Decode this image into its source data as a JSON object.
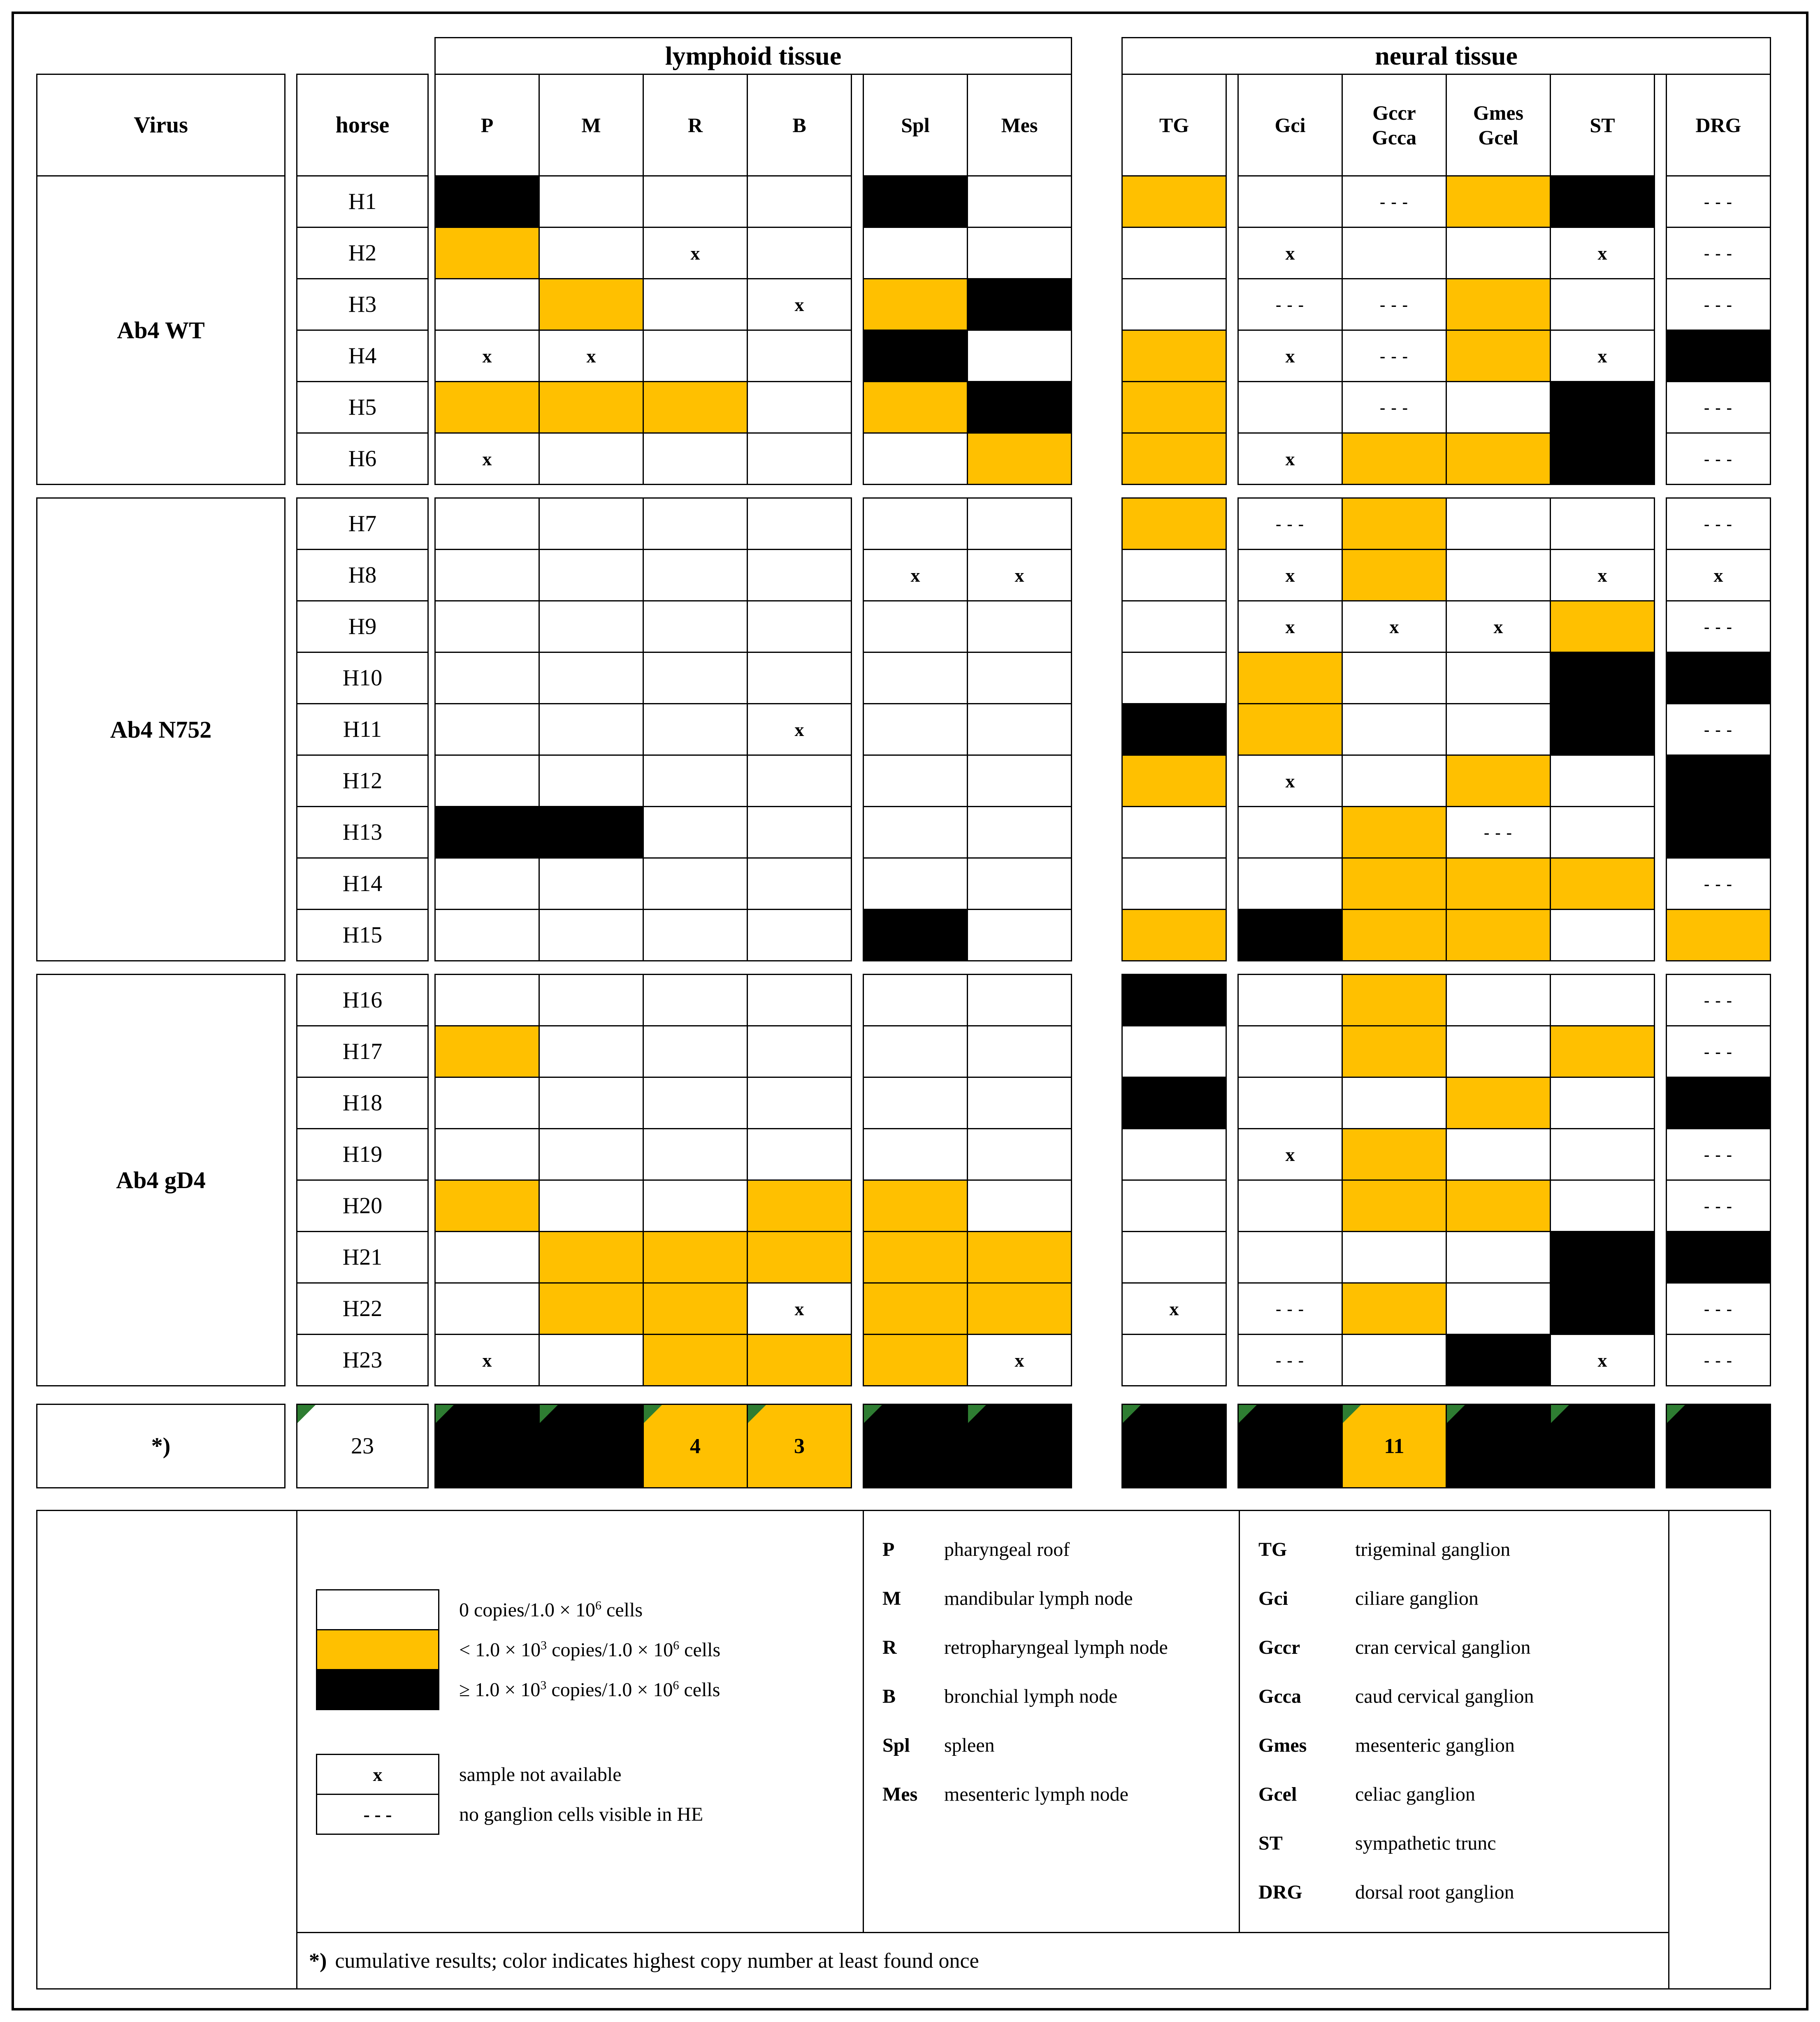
{
  "colors": {
    "low_copy_orange": "#FFC000",
    "high_copy_black": "#000000",
    "flag_green": "#2E7D32"
  },
  "symbols": {
    "x": "x",
    "dash": "- - -"
  },
  "header": {
    "tissue_groups": [
      {
        "label": "lymphoid tissue"
      },
      {
        "label": "neural tissue"
      }
    ],
    "virus": "Virus",
    "horse": "horse",
    "lymphoid_columns": [
      [
        "P"
      ],
      [
        "M"
      ],
      [
        "R"
      ],
      [
        "B"
      ],
      [
        "Spl"
      ],
      [
        "Mes"
      ]
    ],
    "neural_columns": [
      [
        "TG"
      ],
      [
        "Gci"
      ],
      [
        "Gccr",
        "Gcca"
      ],
      [
        "Gmes",
        "Gcel"
      ],
      [
        "ST"
      ],
      [
        "DRG"
      ]
    ]
  },
  "groups": [
    {
      "virus": "Ab4 WT",
      "rows": [
        {
          "horse": "H1",
          "cells": [
            "black",
            "white",
            "white",
            "white",
            "black",
            "white",
            "orange",
            "white",
            "dash",
            "orange",
            "black",
            "dash"
          ]
        },
        {
          "horse": "H2",
          "cells": [
            "orange",
            "white",
            "x",
            "white",
            "white",
            "white",
            "white",
            "x",
            "white",
            "white",
            "x",
            "dash"
          ]
        },
        {
          "horse": "H3",
          "cells": [
            "white",
            "orange",
            "white",
            "x",
            "orange",
            "black",
            "white",
            "dash",
            "dash",
            "orange",
            "white",
            "dash"
          ]
        },
        {
          "horse": "H4",
          "cells": [
            "x",
            "x",
            "white",
            "white",
            "black",
            "white",
            "orange",
            "x",
            "dash",
            "orange",
            "x",
            "black"
          ]
        },
        {
          "horse": "H5",
          "cells": [
            "orange",
            "orange",
            "orange",
            "white",
            "orange",
            "black",
            "orange",
            "white",
            "dash",
            "white",
            "black",
            "dash"
          ]
        },
        {
          "horse": "H6",
          "cells": [
            "x",
            "white",
            "white",
            "white",
            "white",
            "orange",
            "orange",
            "x",
            "orange",
            "orange",
            "black",
            "dash"
          ]
        }
      ]
    },
    {
      "virus": "Ab4 N752",
      "rows": [
        {
          "horse": "H7",
          "cells": [
            "white",
            "white",
            "white",
            "white",
            "white",
            "white",
            "orange",
            "dash",
            "orange",
            "white",
            "white",
            "dash"
          ]
        },
        {
          "horse": "H8",
          "cells": [
            "white",
            "white",
            "white",
            "white",
            "x",
            "x",
            "white",
            "x",
            "orange",
            "white",
            "x",
            "x"
          ]
        },
        {
          "horse": "H9",
          "cells": [
            "white",
            "white",
            "white",
            "white",
            "white",
            "white",
            "white",
            "x",
            "x",
            "x",
            "orange",
            "dash"
          ]
        },
        {
          "horse": "H10",
          "cells": [
            "white",
            "white",
            "white",
            "white",
            "white",
            "white",
            "white",
            "orange",
            "white",
            "white",
            "black",
            "black"
          ]
        },
        {
          "horse": "H11",
          "cells": [
            "white",
            "white",
            "white",
            "x",
            "white",
            "white",
            "black",
            "orange",
            "white",
            "white",
            "black",
            "dash"
          ]
        },
        {
          "horse": "H12",
          "cells": [
            "white",
            "white",
            "white",
            "white",
            "white",
            "white",
            "orange",
            "x",
            "white",
            "orange",
            "white",
            "black"
          ]
        },
        {
          "horse": "H13",
          "cells": [
            "black",
            "black",
            "white",
            "white",
            "white",
            "white",
            "white",
            "white",
            "orange",
            "dash",
            "white",
            "black"
          ]
        },
        {
          "horse": "H14",
          "cells": [
            "white",
            "white",
            "white",
            "white",
            "white",
            "white",
            "white",
            "white",
            "orange",
            "orange",
            "orange",
            "dash"
          ]
        },
        {
          "horse": "H15",
          "cells": [
            "white",
            "white",
            "white",
            "white",
            "black",
            "white",
            "orange",
            "black",
            "orange",
            "orange",
            "white",
            "orange"
          ]
        }
      ]
    },
    {
      "virus": "Ab4 gD4",
      "rows": [
        {
          "horse": "H16",
          "cells": [
            "white",
            "white",
            "white",
            "white",
            "white",
            "white",
            "black",
            "white",
            "orange",
            "white",
            "white",
            "dash"
          ]
        },
        {
          "horse": "H17",
          "cells": [
            "orange",
            "white",
            "white",
            "white",
            "white",
            "white",
            "white",
            "white",
            "orange",
            "white",
            "orange",
            "dash"
          ]
        },
        {
          "horse": "H18",
          "cells": [
            "white",
            "white",
            "white",
            "white",
            "white",
            "white",
            "black",
            "white",
            "white",
            "orange",
            "white",
            "black"
          ]
        },
        {
          "horse": "H19",
          "cells": [
            "white",
            "white",
            "white",
            "white",
            "white",
            "white",
            "white",
            "x",
            "orange",
            "white",
            "white",
            "dash"
          ]
        },
        {
          "horse": "H20",
          "cells": [
            "orange",
            "white",
            "white",
            "orange",
            "orange",
            "white",
            "white",
            "white",
            "orange",
            "orange",
            "white",
            "dash"
          ]
        },
        {
          "horse": "H21",
          "cells": [
            "white",
            "orange",
            "orange",
            "orange",
            "orange",
            "orange",
            "white",
            "white",
            "white",
            "white",
            "black",
            "black"
          ]
        },
        {
          "horse": "H22",
          "cells": [
            "white",
            "orange",
            "orange",
            "x",
            "orange",
            "orange",
            "x",
            "dash",
            "orange",
            "white",
            "black",
            "dash"
          ]
        },
        {
          "horse": "H23",
          "cells": [
            "x",
            "white",
            "orange",
            "orange",
            "orange",
            "x",
            "white",
            "dash",
            "white",
            "black",
            "x",
            "dash"
          ]
        }
      ]
    }
  ],
  "summary": {
    "label": "*)",
    "horse_total": "23",
    "cells": [
      {
        "color": "black",
        "value": ""
      },
      {
        "color": "black",
        "value": ""
      },
      {
        "color": "orange",
        "value": "4"
      },
      {
        "color": "orange",
        "value": "3"
      },
      {
        "color": "black",
        "value": ""
      },
      {
        "color": "black",
        "value": ""
      },
      {
        "color": "black",
        "value": ""
      },
      {
        "color": "black",
        "value": ""
      },
      {
        "color": "orange",
        "value": "11"
      },
      {
        "color": "black",
        "value": ""
      },
      {
        "color": "black",
        "value": ""
      },
      {
        "color": "black",
        "value": ""
      }
    ]
  },
  "legend": {
    "copy_key": [
      {
        "swatch": "white",
        "parts": [
          {
            "t": "0 copies/1.0 × 10"
          },
          {
            "t": "6",
            "sup": true
          },
          {
            "t": " cells"
          }
        ]
      },
      {
        "swatch": "orange",
        "parts": [
          {
            "t": "< 1.0 × 10"
          },
          {
            "t": "3",
            "sup": true
          },
          {
            "t": " copies/1.0 × 10"
          },
          {
            "t": "6",
            "sup": true
          },
          {
            "t": " cells"
          }
        ]
      },
      {
        "swatch": "black",
        "parts": [
          {
            "t": "≥ 1.0 × 10"
          },
          {
            "t": "3",
            "sup": true
          },
          {
            "t": " copies/1.0 × 10"
          },
          {
            "t": "6",
            "sup": true
          },
          {
            "t": " cells"
          }
        ]
      }
    ],
    "marker_key": [
      {
        "symbol": "x",
        "label": "sample not available"
      },
      {
        "symbol": "- - -",
        "label": "no ganglion cells visible in HE"
      }
    ],
    "lymphoid_abbrev": [
      {
        "abbr": "P",
        "desc": "pharyngeal roof"
      },
      {
        "abbr": "M",
        "desc": "mandibular lymph node"
      },
      {
        "abbr": "R",
        "desc": "retropharyngeal lymph node"
      },
      {
        "abbr": "B",
        "desc": "bronchial lymph node"
      },
      {
        "abbr": "Spl",
        "desc": "spleen"
      },
      {
        "abbr": "Mes",
        "desc": "mesenteric lymph node"
      }
    ],
    "neural_abbrev": [
      {
        "abbr": "TG",
        "desc": "trigeminal ganglion"
      },
      {
        "abbr": "Gci",
        "desc": "ciliare ganglion"
      },
      {
        "abbr": "Gccr",
        "desc": "cran cervical ganglion"
      },
      {
        "abbr": "Gcca",
        "desc": "caud cervical ganglion"
      },
      {
        "abbr": "Gmes",
        "desc": "mesenteric ganglion"
      },
      {
        "abbr": "Gcel",
        "desc": "celiac ganglion"
      },
      {
        "abbr": "ST",
        "desc": "sympathetic trunc"
      },
      {
        "abbr": "DRG",
        "desc": "dorsal root ganglion"
      }
    ],
    "footnote": {
      "marker": "*)",
      "text": "cumulative results; color indicates highest copy number at least found once"
    }
  }
}
